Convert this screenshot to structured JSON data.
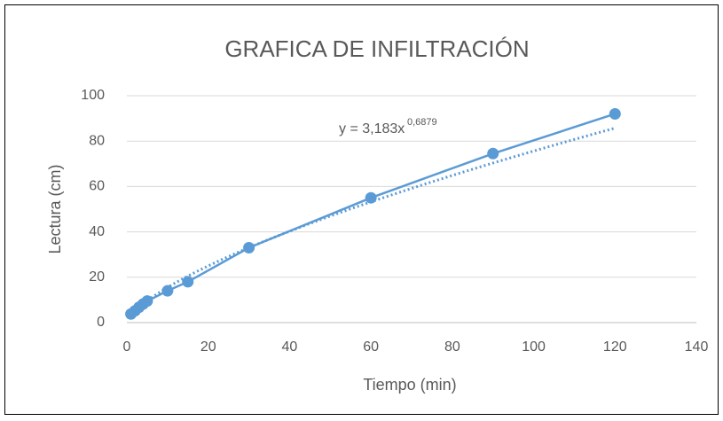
{
  "chart_data": {
    "type": "scatter",
    "title": "GRAFICA DE INFILTRACIÓN",
    "x_label": "Tiempo (min)",
    "y_label": "Lectura (cm)",
    "series": [
      {
        "name": "Lectura",
        "color": "#5b9bd5",
        "x": [
          1,
          2,
          3,
          4,
          5,
          10,
          15,
          30,
          60,
          90,
          120
        ],
        "values": [
          3.8,
          5.2,
          6.8,
          8.2,
          9.5,
          14,
          18,
          33,
          55,
          74.5,
          92
        ]
      }
    ],
    "trendline": {
      "type": "power",
      "coefficient": 3.183,
      "exponent": 0.6879
    },
    "annotation": {
      "text": "y = 3,183x",
      "superscript": "0,6879"
    },
    "xlim": [
      0,
      140
    ],
    "xticks": [
      0,
      20,
      40,
      60,
      80,
      100,
      120,
      140
    ],
    "ylim": [
      0,
      100
    ],
    "yticks": [
      0,
      20,
      40,
      60,
      80,
      100
    ],
    "grid": true
  }
}
